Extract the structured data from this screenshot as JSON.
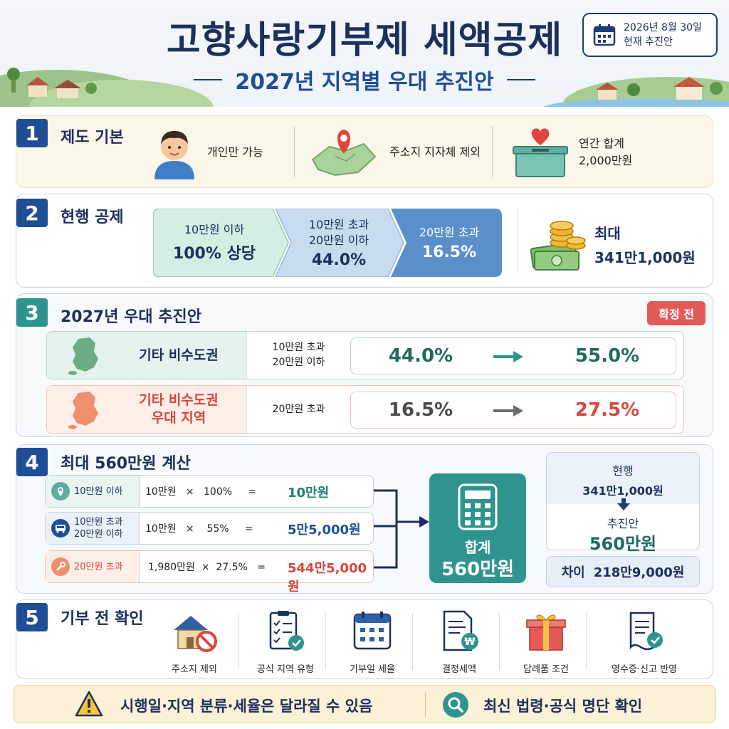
{
  "header": {
    "title": "고향사랑기부제 세액공제",
    "subtitle": "2027년 지역별 우대 추진안",
    "date_line1": "2026년 8월 30일",
    "date_line2": "현재 추진안"
  },
  "section1": {
    "number": "1",
    "title": "제도 기본",
    "items": [
      {
        "label": "개인만 가능",
        "icon": "person-icon"
      },
      {
        "label": "주소지 지자체 제외",
        "icon": "map-pin-icon"
      },
      {
        "label_line1": "연간 합계",
        "label_line2": "2,000만원",
        "icon": "donation-box-icon"
      }
    ]
  },
  "section2": {
    "number": "2",
    "title": "현행 공제",
    "tiers": [
      {
        "range_line1": "10만원 이하",
        "range_line2": "",
        "rate": "100% 상당"
      },
      {
        "range_line1": "10만원 초과",
        "range_line2": "20만원 이하",
        "rate": "44.0%"
      },
      {
        "range_line1": "20만원 초과",
        "range_line2": "",
        "rate": "16.5%"
      }
    ],
    "max_label": "최대",
    "max_value": "341만1,000원",
    "max_icon": "money-coins-icon"
  },
  "section3": {
    "number": "3",
    "title": "2027년 우대 추진안",
    "badge": "확정 전",
    "rows": [
      {
        "region_line1": "기타 비수도권",
        "region_line2": "",
        "range_line1": "10만원 초과",
        "range_line2": "20만원 이하",
        "from": "44.0%",
        "to": "55.0%",
        "color": "#1f6b5e"
      },
      {
        "region_line1": "기타 비수도권",
        "region_line2": "우대 지역",
        "range_line1": "20만원 초과",
        "range_line2": "",
        "from": "16.5%",
        "to": "27.5%",
        "color": "#d8463c"
      }
    ]
  },
  "section4": {
    "number": "4",
    "title": "최대 560만원 계산",
    "rows": [
      {
        "label_line1": "10만원 이하",
        "label_line2": "",
        "expr": "10만원   ×   100%     =",
        "result": "10만원",
        "color": "#1f7f6a"
      },
      {
        "label_line1": "10만원 초과",
        "label_line2": "20만원 이하",
        "expr": "10만원   ×    55%     =",
        "result": "5만5,000원",
        "color": "#1f4e96"
      },
      {
        "label_line1": "20만원 초과",
        "label_line2": "",
        "expr": "1,980만원  ×  27.5%   =",
        "result": "544만5,000원",
        "color": "#d8463c"
      }
    ],
    "sum_label": "합계",
    "sum_value": "560만원",
    "current_label": "현행",
    "current_value": "341만1,000원",
    "proposed_label": "추진안",
    "proposed_value": "560만원",
    "diff_label": "차이",
    "diff_value": "218만9,000원"
  },
  "section5": {
    "number": "5",
    "title": "기부 전 확인",
    "items": [
      {
        "label": "주소지 제외",
        "icon": "house-prohibited-icon"
      },
      {
        "label": "공식 지역 유형",
        "icon": "checklist-icon"
      },
      {
        "label": "기부일 세율",
        "icon": "calendar-icon"
      },
      {
        "label": "결정세액",
        "icon": "tax-document-icon"
      },
      {
        "label": "답례품 조건",
        "icon": "gift-icon"
      },
      {
        "label": "영수증·신고 반영",
        "icon": "receipt-check-icon"
      }
    ]
  },
  "footer": {
    "warning": "시행일·지역 분류·세율은 달라질 수 있음",
    "check": "최신 법령·공식 명단 확인"
  },
  "colors": {
    "navy": "#1d2f5c",
    "teal": "#2f948e",
    "red": "#e35b57",
    "blue": "#1f4e96"
  }
}
